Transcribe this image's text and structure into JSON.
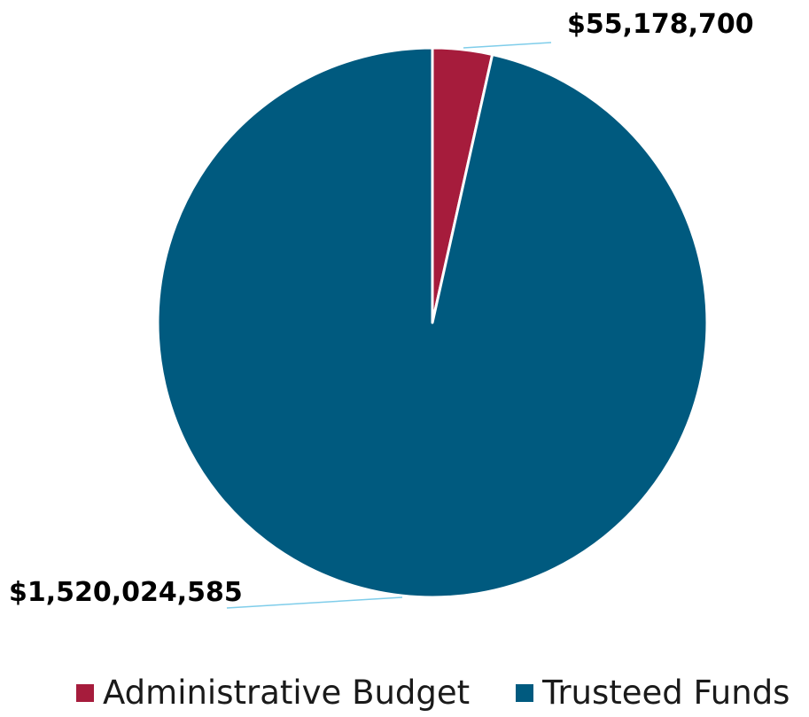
{
  "chart_data": {
    "type": "pie",
    "categories": [
      "Administrative Budget",
      "Trusteed Funds"
    ],
    "values": [
      55178700,
      1520024585
    ],
    "data_labels": [
      "$55,178,700",
      "$1,520,024,585"
    ],
    "colors": [
      "#a61c3c",
      "#005a7f"
    ],
    "leader_line_color": "#7fcdea",
    "legend": {
      "position": "bottom",
      "entries": [
        "Administrative Budget",
        "Trusteed Funds"
      ]
    }
  }
}
